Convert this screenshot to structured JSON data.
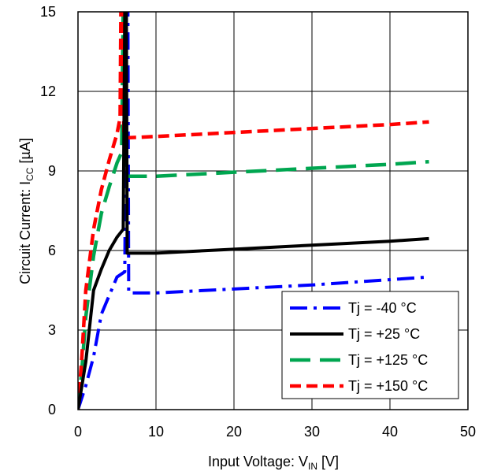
{
  "chart_data": {
    "type": "line",
    "xlabel": {
      "main": "Input Voltage: V",
      "sub": "IN",
      "unit": " [V]"
    },
    "ylabel": {
      "main": "Circuit Current: I",
      "sub": "CC",
      "unit": " [µA]"
    },
    "xlim": [
      0,
      50
    ],
    "ylim": [
      0,
      15
    ],
    "xticks": [
      "0",
      "10",
      "20",
      "30",
      "40",
      "50"
    ],
    "yticks": [
      "0",
      "3",
      "6",
      "9",
      "12",
      "15"
    ],
    "grid": true,
    "legend": {
      "position": "bottom-right"
    },
    "series": [
      {
        "name": "Tj = -40 °C",
        "color": "#0000ff",
        "dash": "dash-dot",
        "x": [
          0,
          1,
          2,
          3,
          4,
          5,
          6,
          6.2,
          6.4,
          6.5,
          6.7,
          10,
          20,
          30,
          40,
          45
        ],
        "y": [
          0,
          0.9,
          2.0,
          3.6,
          4.3,
          5.0,
          5.2,
          15,
          15,
          4.4,
          4.4,
          4.4,
          4.55,
          4.7,
          4.9,
          5.0
        ]
      },
      {
        "name": "Tj = +25 °C",
        "color": "#000000",
        "dash": "solid",
        "x": [
          0,
          1,
          2,
          3,
          4,
          5,
          5.8,
          6.0,
          6.2,
          6.3,
          6.3,
          6.3,
          10,
          20,
          30,
          40,
          45
        ],
        "y": [
          0,
          1.8,
          4.5,
          5.3,
          6.0,
          6.5,
          6.8,
          15,
          15,
          6.9,
          6.1,
          5.9,
          5.9,
          6.05,
          6.2,
          6.35,
          6.45
        ]
      },
      {
        "name": "Tj = +125 °C",
        "color": "#00a650",
        "dash": "long-dash",
        "x": [
          0,
          0.5,
          1,
          2,
          3,
          4,
          5,
          5.6,
          5.8,
          6.0,
          6.2,
          10,
          20,
          30,
          40,
          45
        ],
        "y": [
          0,
          1.5,
          3.5,
          5.8,
          7.4,
          8.4,
          9.3,
          9.7,
          15,
          15,
          8.8,
          8.8,
          8.95,
          9.1,
          9.25,
          9.35
        ]
      },
      {
        "name": "Tj = +150 °C",
        "color": "#ff0000",
        "dash": "short-dash",
        "x": [
          0,
          0.5,
          1,
          2,
          3,
          4,
          5,
          5.4,
          5.5,
          5.7,
          5.9,
          6.3,
          10,
          20,
          30,
          40,
          45
        ],
        "y": [
          0,
          2.0,
          4.5,
          6.8,
          8.3,
          9.4,
          10.4,
          11.0,
          15,
          15,
          10.3,
          10.25,
          10.3,
          10.45,
          10.6,
          10.75,
          10.85
        ]
      }
    ]
  }
}
